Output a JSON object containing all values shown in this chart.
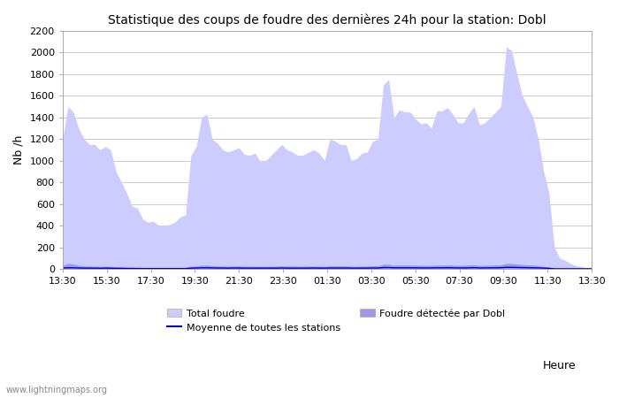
{
  "title": "Statistique des coups de foudre des dernières 24h pour la station: Dobl",
  "xlabel": "Heure",
  "ylabel": "Nb /h",
  "xlim_labels": [
    "13:30",
    "15:30",
    "17:30",
    "19:30",
    "21:30",
    "23:30",
    "01:30",
    "03:30",
    "05:30",
    "07:30",
    "09:30",
    "11:30",
    "13:30"
  ],
  "ylim": [
    0,
    2200
  ],
  "yticks": [
    0,
    200,
    400,
    600,
    800,
    1000,
    1200,
    1400,
    1600,
    1800,
    2000,
    2200
  ],
  "color_total": "#ccccff",
  "color_detected": "#9999ee",
  "color_mean_line": "#0000cc",
  "watermark": "www.lightningmaps.org",
  "legend_total": "Total foudre",
  "legend_detected": "Foudre détectée par Dobl",
  "legend_mean": "Moyenne de toutes les stations",
  "total_foudre": [
    1200,
    1500,
    1450,
    1300,
    1200,
    1150,
    1150,
    1100,
    1130,
    1100,
    900,
    800,
    700,
    580,
    560,
    460,
    430,
    440,
    400,
    400,
    410,
    430,
    480,
    500,
    1050,
    1130,
    1400,
    1430,
    1200,
    1160,
    1100,
    1080,
    1100,
    1120,
    1060,
    1050,
    1070,
    990,
    1000,
    1050,
    1100,
    1150,
    1100,
    1080,
    1050,
    1050,
    1080,
    1100,
    1070,
    1000,
    1200,
    1180,
    1150,
    1150,
    1000,
    1020,
    1070,
    1080,
    1180,
    1200,
    1700,
    1750,
    1400,
    1470,
    1450,
    1450,
    1390,
    1340,
    1350,
    1300,
    1460,
    1460,
    1490,
    1430,
    1350,
    1350,
    1440,
    1500,
    1330,
    1350,
    1400,
    1450,
    1500,
    2050,
    2020,
    1800,
    1600,
    1500,
    1400,
    1200,
    900,
    700,
    200,
    100,
    80,
    50,
    30,
    20,
    10,
    5
  ],
  "detected_dobl": [
    30,
    50,
    45,
    32,
    28,
    25,
    25,
    22,
    25,
    22,
    20,
    18,
    15,
    14,
    13,
    11,
    10,
    11,
    10,
    10,
    10,
    11,
    12,
    12,
    25,
    27,
    35,
    35,
    30,
    28,
    26,
    25,
    26,
    28,
    25,
    25,
    25,
    24,
    24,
    25,
    26,
    28,
    26,
    26,
    25,
    25,
    26,
    27,
    26,
    24,
    29,
    28,
    28,
    28,
    24,
    25,
    26,
    26,
    29,
    29,
    42,
    43,
    34,
    36,
    35,
    35,
    34,
    33,
    33,
    32,
    35,
    35,
    37,
    35,
    33,
    33,
    36,
    37,
    32,
    33,
    34,
    36,
    37,
    50,
    50,
    45,
    40,
    37,
    35,
    30,
    22,
    17,
    5,
    3,
    2,
    1,
    1,
    1,
    1,
    1
  ],
  "mean_line": [
    8,
    10,
    10,
    8,
    7,
    7,
    7,
    6,
    7,
    6,
    5,
    5,
    4,
    4,
    4,
    3,
    3,
    3,
    3,
    3,
    3,
    3,
    3,
    3,
    7,
    8,
    10,
    10,
    9,
    8,
    8,
    7,
    8,
    8,
    7,
    7,
    7,
    7,
    7,
    7,
    7,
    8,
    7,
    7,
    7,
    7,
    7,
    8,
    7,
    7,
    8,
    8,
    8,
    8,
    7,
    7,
    7,
    7,
    8,
    8,
    12,
    12,
    10,
    10,
    10,
    10,
    10,
    9,
    9,
    9,
    10,
    10,
    11,
    10,
    9,
    9,
    10,
    11,
    9,
    9,
    10,
    10,
    11,
    14,
    14,
    13,
    12,
    11,
    10,
    9,
    7,
    5,
    1,
    1,
    1,
    1,
    1,
    1,
    1,
    1
  ],
  "background_color": "#ffffff",
  "plot_background_color": "#ffffff",
  "grid_color": "#cccccc"
}
